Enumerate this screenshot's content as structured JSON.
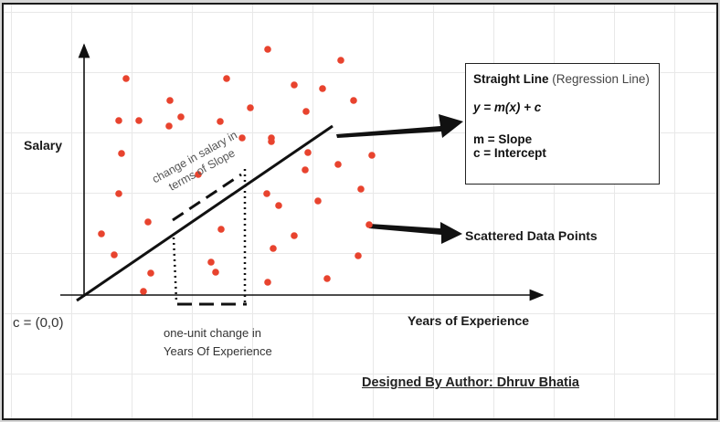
{
  "axes": {
    "y_label": "Salary",
    "x_label": "Years of Experience",
    "origin_label": "c = (0,0)"
  },
  "annotations": {
    "slope_text": "change in salary in terms of Slope",
    "unit_change_text": "one-unit change in Years Of Experience",
    "scatter_label": "Scattered Data Points"
  },
  "legend": {
    "title": "Straight Line",
    "title_sub": "(Regression Line)",
    "equation": "y = m(x) + c",
    "m_def": "m = Slope",
    "c_def": "c = Intercept"
  },
  "footer": {
    "author": "Designed By Author: Dhruv Bhatia"
  },
  "colors": {
    "points": "#e8432e",
    "lines": "#111111"
  }
}
